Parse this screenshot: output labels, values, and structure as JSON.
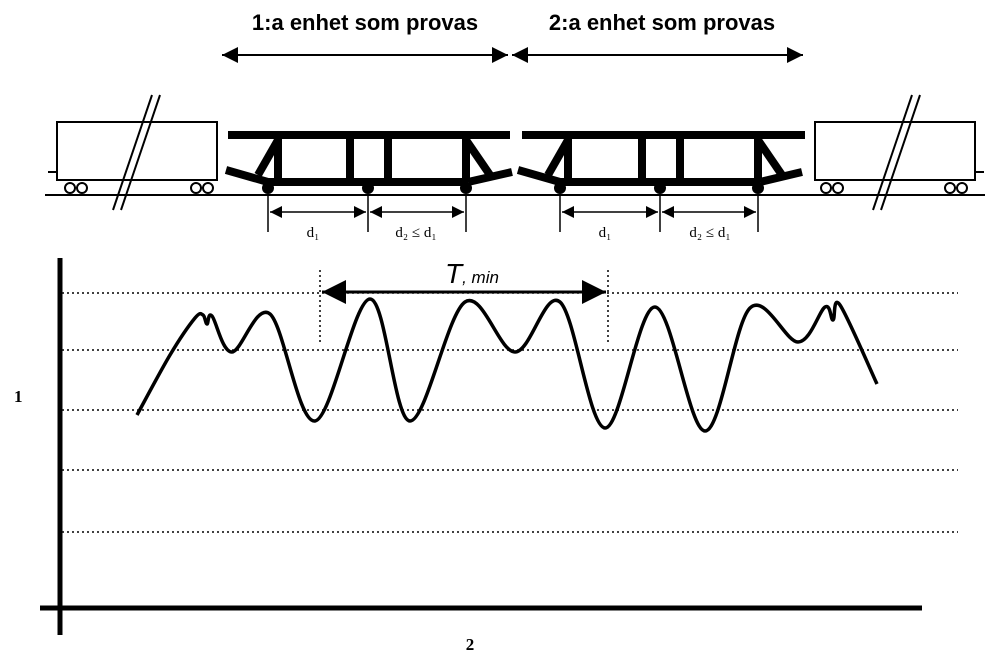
{
  "header": {
    "unit_1": "1:a enhet som provas",
    "unit_2": "2:a enhet som provas"
  },
  "dimensions": {
    "unit_1": {
      "d1": "d₁",
      "d2": "d₂ ≤ d₁"
    },
    "unit_2": {
      "d1": "d₁",
      "d2": "d₂ ≤ d₁"
    }
  },
  "period": {
    "symbol": "T",
    "subscript": ", min"
  },
  "axes": {
    "y_label": "1",
    "x_label": "2"
  }
}
